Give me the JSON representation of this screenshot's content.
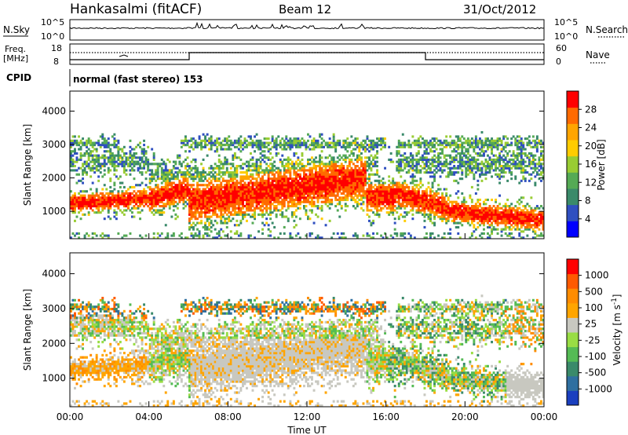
{
  "header": {
    "title": "Hankasalmi (fitACF)",
    "beam": "Beam 12",
    "date": "31/Oct/2012"
  },
  "nsky_panel": {
    "label": "N.Sky",
    "right_label": "N.Search",
    "ticks_left": [
      "10^5",
      "10^0"
    ],
    "ticks_right": [
      "10^5",
      "10^0"
    ]
  },
  "freq_panel": {
    "label_line1": "Freq.",
    "label_line2": "[MHz]",
    "ticks_left": [
      "18",
      "8"
    ],
    "ticks_right": [
      "60",
      "0"
    ],
    "right_label": "Nave"
  },
  "cpid_panel": {
    "label": "CPID",
    "program": "normal (fast stereo) 153"
  },
  "power_colorbar": {
    "label": "Power [dB]",
    "ticks": [
      "28",
      "24",
      "20",
      "16",
      "12",
      "8",
      "4"
    ],
    "colors": [
      "#0000ff",
      "#2f4fc0",
      "#3a8a6a",
      "#55aa55",
      "#99cc33",
      "#ffcc00",
      "#ffa500",
      "#ff6a00",
      "#ff0000"
    ]
  },
  "velocity_colorbar": {
    "label_text": "Velocity [m s",
    "label_sup": "-1",
    "label_close": "]",
    "ticks": [
      "1000",
      "500",
      "100",
      "25",
      "-25",
      "-100",
      "-500",
      "-1000"
    ],
    "colors": [
      "#1a3fbf",
      "#2f6fa0",
      "#3a8a6a",
      "#55bb55",
      "#99dd44",
      "#c8c8c0",
      "#ffa500",
      "#ff8c00",
      "#ff5a00",
      "#ff0000"
    ]
  },
  "chart_data": [
    {
      "type": "line",
      "name": "N.Sky / N.Search",
      "ylim": [
        0,
        5
      ],
      "xlim": [
        0,
        24
      ]
    },
    {
      "type": "line",
      "name": "Freq / Nave",
      "ylabel": "Freq. [MHz]",
      "y_left_range": [
        8,
        18
      ],
      "y_right_range": [
        0,
        60
      ]
    },
    {
      "type": "heatmap",
      "name": "Power",
      "ylabel": "Slant Range [km]",
      "y_ticks": [
        1000,
        2000,
        3000,
        4000
      ],
      "ylim": [
        180,
        4600
      ],
      "clim": [
        0,
        32
      ],
      "colorbar_ticks": [
        4,
        8,
        12,
        16,
        20,
        24,
        28
      ]
    },
    {
      "type": "heatmap",
      "name": "Velocity",
      "ylabel": "Slant Range [km]",
      "xlabel": "Time UT",
      "x_ticks": [
        "00:00",
        "04:00",
        "08:00",
        "12:00",
        "16:00",
        "20:00",
        "00:00"
      ],
      "xlim": [
        0,
        24
      ],
      "y_ticks": [
        1000,
        2000,
        3000,
        4000
      ],
      "ylim": [
        180,
        4600
      ],
      "colorbar_ticks": [
        1000,
        500,
        100,
        25,
        -25,
        -100,
        -500,
        -1000
      ]
    }
  ]
}
